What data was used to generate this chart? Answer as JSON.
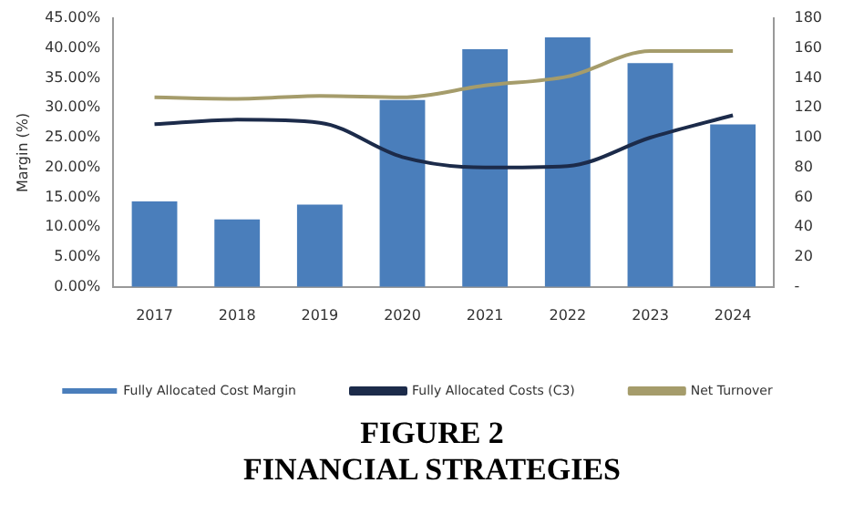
{
  "chart_data": {
    "type": "bar",
    "title": "FIGURE 2",
    "subtitle": "FINANCIAL STRATEGIES",
    "ylabel": "Margin (%)",
    "categories": [
      "2017",
      "2018",
      "2019",
      "2020",
      "2021",
      "2022",
      "2023",
      "2024"
    ],
    "series": [
      {
        "name": "Fully Allocated Cost Margin",
        "color": "#4a7ebb",
        "values": [
          14.3,
          11.3,
          13.8,
          31.3,
          39.8,
          41.8,
          37.5,
          27.2
        ]
      },
      {
        "name": "Fully Allocated Costs (C3)",
        "type": "line",
        "axis": "y2",
        "color": "#1c2b4a",
        "values": [
          109,
          112,
          110,
          87,
          80,
          81,
          100,
          115
        ]
      },
      {
        "name": "Net Turnover",
        "type": "line",
        "axis": "y2",
        "color": "#a59c6b",
        "values": [
          127,
          126,
          128,
          127,
          135,
          141,
          158,
          158
        ]
      }
    ],
    "ylim": [
      0,
      45
    ],
    "yticks": [
      {
        "value": 0,
        "label": "0.00%"
      },
      {
        "value": 5,
        "label": "5.00%"
      },
      {
        "value": 10,
        "label": "10.00%"
      },
      {
        "value": 15,
        "label": "15.00%"
      },
      {
        "value": 20,
        "label": "20.00%"
      },
      {
        "value": 25,
        "label": "25.00%"
      },
      {
        "value": 30,
        "label": "30.00%"
      },
      {
        "value": 35,
        "label": "35.00%"
      },
      {
        "value": 40,
        "label": "40.00%"
      },
      {
        "value": 45,
        "label": "45.00%"
      }
    ],
    "y2lim": [
      0,
      180
    ],
    "y2ticks": [
      {
        "value": 0,
        "label": "-"
      },
      20,
      40,
      60,
      80,
      100,
      120,
      140,
      160,
      180
    ],
    "grid": false,
    "legend": "bottom",
    "line_style": "solid",
    "marker": "none"
  }
}
